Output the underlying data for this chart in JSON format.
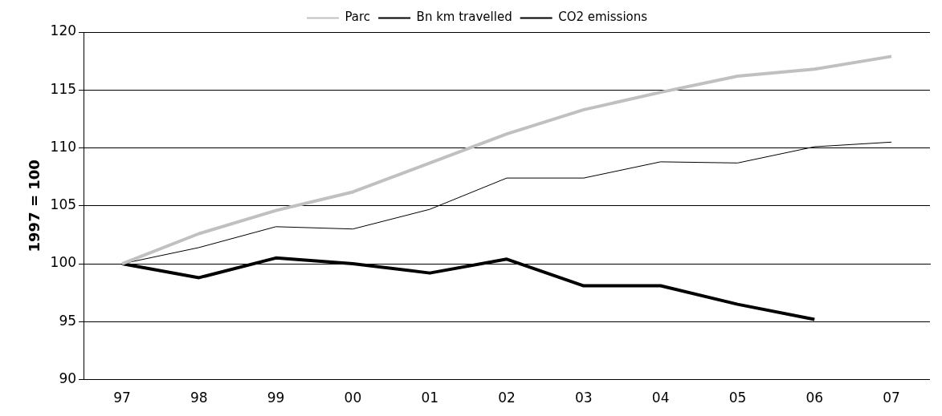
{
  "chart_data": {
    "type": "line",
    "ylabel": "1997 = 100",
    "categories": [
      "97",
      "98",
      "99",
      "00",
      "01",
      "02",
      "03",
      "04",
      "05",
      "06",
      "07"
    ],
    "series": [
      {
        "name": "Parc",
        "color": "#c0c0c0",
        "values": [
          100,
          102.6,
          104.6,
          106.2,
          108.7,
          111.2,
          113.3,
          114.8,
          116.2,
          116.8,
          117.9
        ]
      },
      {
        "name": "Bn km travelled",
        "color": "#000000",
        "values": [
          100,
          101.4,
          103.2,
          103.0,
          104.7,
          107.4,
          107.4,
          108.8,
          108.7,
          110.1,
          110.5
        ]
      },
      {
        "name": "CO2 emissions",
        "color": "#000000",
        "values": [
          100,
          98.8,
          100.5,
          100.0,
          99.2,
          100.4,
          98.1,
          98.1,
          96.5,
          95.2,
          null
        ]
      }
    ],
    "ylim": [
      90,
      120
    ],
    "yticks": [
      90,
      95,
      100,
      105,
      110,
      115,
      120
    ],
    "grid": "y",
    "legend": "top",
    "marker": "none",
    "line_style": "solid"
  }
}
